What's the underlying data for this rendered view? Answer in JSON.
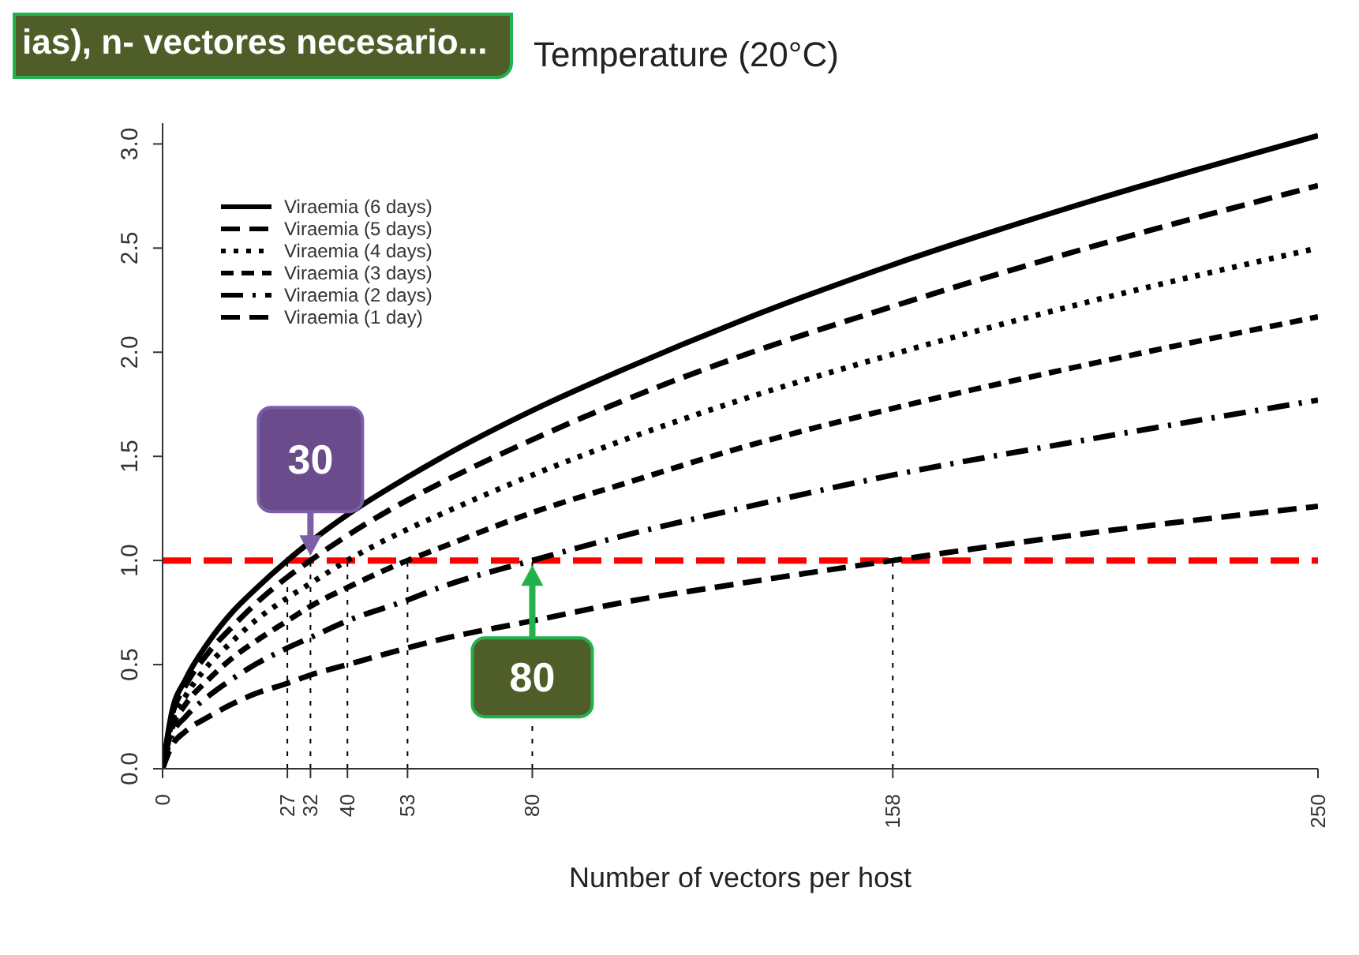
{
  "chart_data": {
    "type": "line",
    "title": "Temperature (20°C)",
    "xlabel": "Number of vectors per host",
    "annotations": [
      "ias), n- vectores necesario...",
      {
        "text": "30",
        "x": 32,
        "y": 1
      },
      {
        "text": "80",
        "x": 80,
        "y": 1
      }
    ],
    "x": [
      0,
      2,
      5,
      10,
      15,
      20,
      27,
      32,
      40,
      53,
      60,
      80,
      100,
      125,
      158,
      200,
      250
    ],
    "series": [
      {
        "name": "Viraemia (6 days)",
        "color": "#000000",
        "line_style": "solid",
        "values": [
          0,
          0.27,
          0.43,
          0.61,
          0.75,
          0.86,
          1.0,
          1.09,
          1.22,
          1.4,
          1.49,
          1.72,
          1.92,
          2.15,
          2.42,
          2.72,
          3.04
        ]
      },
      {
        "name": "Viraemia (5 days)",
        "color": "#000000",
        "line_style": "dashed",
        "values": [
          0,
          0.25,
          0.4,
          0.56,
          0.68,
          0.79,
          0.92,
          1.0,
          1.12,
          1.29,
          1.37,
          1.58,
          1.77,
          1.98,
          2.22,
          2.5,
          2.8
        ]
      },
      {
        "name": "Viraemia (4 days)",
        "color": "#000000",
        "line_style": "dotted",
        "values": [
          0,
          0.22,
          0.35,
          0.5,
          0.61,
          0.71,
          0.82,
          0.89,
          1.0,
          1.15,
          1.22,
          1.41,
          1.58,
          1.77,
          1.99,
          2.24,
          2.5
        ]
      },
      {
        "name": "Viraemia (3 days)",
        "color": "#000000",
        "line_style": "dashed",
        "values": [
          0,
          0.19,
          0.31,
          0.43,
          0.53,
          0.61,
          0.71,
          0.78,
          0.87,
          1.0,
          1.06,
          1.23,
          1.37,
          1.54,
          1.73,
          1.94,
          2.17
        ]
      },
      {
        "name": "Viraemia (2 days)",
        "color": "#000000",
        "line_style": "dashed",
        "values": [
          0,
          0.16,
          0.25,
          0.35,
          0.43,
          0.5,
          0.58,
          0.63,
          0.71,
          0.81,
          0.87,
          1.0,
          1.12,
          1.25,
          1.41,
          1.58,
          1.77
        ]
      },
      {
        "name": "Viraemia (1 day)",
        "color": "#000000",
        "line_style": "dashed",
        "values": [
          0,
          0.11,
          0.18,
          0.25,
          0.31,
          0.36,
          0.41,
          0.45,
          0.5,
          0.58,
          0.62,
          0.71,
          0.8,
          0.89,
          1.0,
          1.13,
          1.26
        ]
      }
    ],
    "xlim": [
      0,
      250
    ],
    "xticks": [
      0,
      27,
      32,
      40,
      53,
      80,
      158,
      250
    ],
    "ylim": [
      0,
      3.1
    ],
    "yticks": [
      {
        "value": 0,
        "label": "0.0"
      },
      {
        "value": 0.5,
        "label": "0.5"
      },
      {
        "value": 1,
        "label": "1.0"
      },
      {
        "value": 1.5,
        "label": "1.5"
      },
      {
        "value": 2,
        "label": "2.0"
      },
      {
        "value": 2.5,
        "label": "2.5"
      },
      {
        "value": 3,
        "label": "3.0"
      }
    ],
    "ref_lines": [
      {
        "axis": "y",
        "value": 1,
        "color": "#ff0000",
        "line_style": "dashed"
      },
      {
        "axis": "x",
        "value": 27,
        "color": "#000000",
        "line_style": "dotted"
      },
      {
        "axis": "x",
        "value": 32,
        "color": "#000000",
        "line_style": "dotted"
      },
      {
        "axis": "x",
        "value": 40,
        "color": "#000000",
        "line_style": "dotted"
      },
      {
        "axis": "x",
        "value": 53,
        "color": "#000000",
        "line_style": "dotted"
      },
      {
        "axis": "x",
        "value": 80,
        "color": "#000000",
        "line_style": "dotted"
      },
      {
        "axis": "x",
        "value": 158,
        "color": "#000000",
        "line_style": "dotted"
      }
    ],
    "grid": false,
    "legend": "top left",
    "marker": "none"
  }
}
